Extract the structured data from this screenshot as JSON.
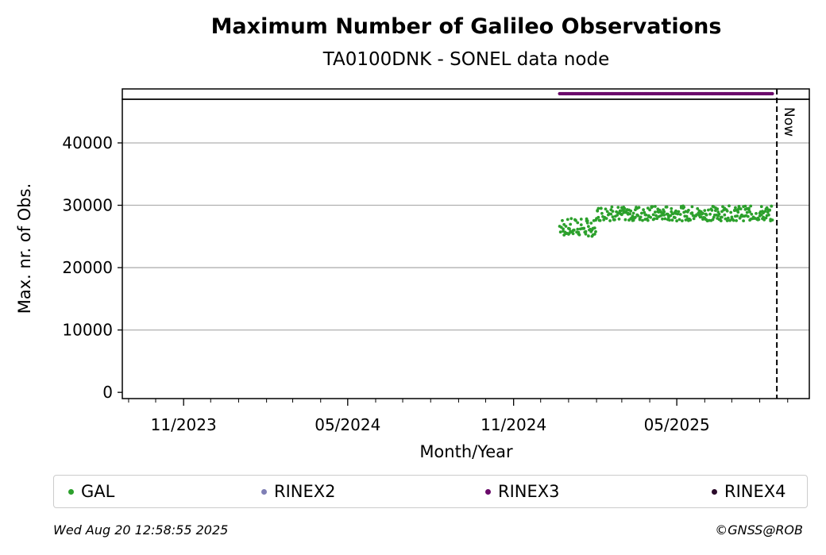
{
  "chart_data": {
    "type": "scatter",
    "title": "Maximum Number of Galileo Observations",
    "subtitle": "TA0100DNK - SONEL data node",
    "xlabel": "Month/Year",
    "ylabel": "Max. nr. of Obs.",
    "x_range": [
      "2023-08-25",
      "2025-09-25"
    ],
    "ylim": [
      -1000,
      47000
    ],
    "x_ticks": [
      {
        "date": "2023-11-01",
        "label": "11/2023"
      },
      {
        "date": "2024-05-01",
        "label": "05/2024"
      },
      {
        "date": "2024-11-01",
        "label": "11/2024"
      },
      {
        "date": "2025-05-01",
        "label": "05/2025"
      }
    ],
    "minor_ticks": [
      "2023-09-01",
      "2023-10-01",
      "2023-12-01",
      "2024-01-01",
      "2024-02-01",
      "2024-03-01",
      "2024-04-01",
      "2024-06-01",
      "2024-07-01",
      "2024-08-01",
      "2024-09-01",
      "2024-10-01",
      "2024-12-01",
      "2025-01-01",
      "2025-02-01",
      "2025-03-01",
      "2025-04-01",
      "2025-06-01",
      "2025-07-01",
      "2025-08-01",
      "2025-09-01"
    ],
    "y_ticks": [
      0,
      10000,
      20000,
      30000,
      40000
    ],
    "grid": "y",
    "now_marker": {
      "date": "2025-08-20",
      "label": "Now"
    },
    "series": [
      {
        "name": "GAL",
        "color": "#2ca02c",
        "segments": [
          {
            "start": "2024-12-22",
            "end": "2025-01-31",
            "min": 25000,
            "max": 27900
          },
          {
            "start": "2025-02-01",
            "end": "2025-08-15",
            "min": 27500,
            "max": 29900
          }
        ]
      },
      {
        "name": "RINEX2",
        "color": "#7f7fb5",
        "segments": []
      },
      {
        "name": "RINEX3",
        "color": "#6a0a6a",
        "availability": {
          "start": "2024-12-22",
          "end": "2025-08-15"
        }
      },
      {
        "name": "RINEX4",
        "color": "#2a0a2a",
        "segments": []
      }
    ]
  },
  "footer": {
    "timestamp": "Wed Aug 20 12:58:55 2025",
    "credit": "©GNSS@ROB"
  }
}
